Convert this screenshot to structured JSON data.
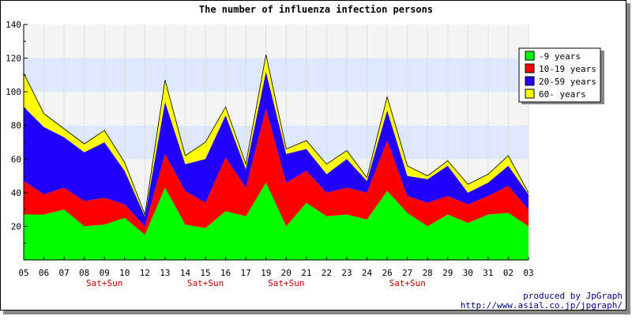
{
  "chart_data": {
    "type": "area",
    "stacked": true,
    "title": "The number of influenza infection persons",
    "xlabel": "",
    "ylabel": "",
    "ylim": [
      0,
      140
    ],
    "yticks": [
      20,
      40,
      60,
      80,
      100,
      120,
      140
    ],
    "grid": true,
    "legend_position": "top-right",
    "x": [
      "05",
      "06",
      "07",
      "08",
      "09",
      "10",
      "12",
      "13",
      "14",
      "15",
      "16",
      "17",
      "19",
      "20",
      "21",
      "22",
      "23",
      "24",
      "26",
      "27",
      "28",
      "29",
      "30",
      "31",
      "02",
      "03"
    ],
    "weekend_label": "Sat+Sun",
    "weekend_markers": [
      "09",
      "15",
      "20",
      "27"
    ],
    "series": [
      {
        "name": "-9 years",
        "color": "#00ff00",
        "values": [
          27,
          27,
          30,
          20,
          21,
          25,
          15,
          43,
          21,
          19,
          29,
          26,
          46,
          20,
          34,
          26,
          27,
          24,
          41,
          28,
          20,
          27,
          22,
          27,
          28,
          20
        ]
      },
      {
        "name": "10-19 years",
        "color": "#ff0000",
        "values": [
          20,
          12,
          13,
          15,
          16,
          8,
          5,
          20,
          20,
          15,
          32,
          17,
          44,
          26,
          19,
          14,
          16,
          16,
          30,
          10,
          14,
          11,
          11,
          11,
          16,
          10
        ]
      },
      {
        "name": "20-59 years",
        "color": "#2200ff",
        "values": [
          44,
          40,
          30,
          29,
          33,
          20,
          6,
          31,
          16,
          26,
          25,
          11,
          22,
          17,
          13,
          11,
          17,
          7,
          18,
          12,
          14,
          18,
          7,
          8,
          12,
          9
        ]
      },
      {
        "name": "60- years",
        "color": "#ffff00",
        "values": [
          20,
          8,
          5,
          5,
          7,
          5,
          1,
          13,
          5,
          10,
          5,
          3,
          10,
          3,
          5,
          6,
          5,
          2,
          8,
          6,
          2,
          3,
          5,
          5,
          6,
          1
        ]
      }
    ]
  },
  "footer": {
    "credit_line1": "produced by JpGraph",
    "credit_line2": "http://www.asial.co.jp/jpgraph/"
  }
}
